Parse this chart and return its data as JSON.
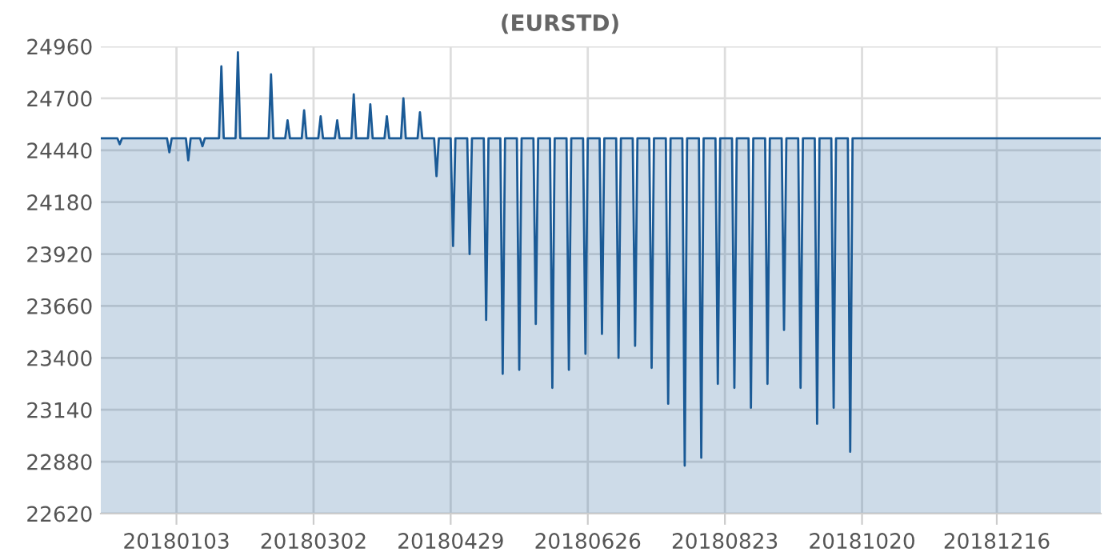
{
  "chart_data": {
    "type": "area",
    "title": "(EURSTD)",
    "x": [
      "2017-12-02",
      "2017-12-09",
      "2017-12-10",
      "2017-12-11",
      "2017-12-30",
      "2017-12-31",
      "2018-01-01",
      "2018-01-07",
      "2018-01-08",
      "2018-01-09",
      "2018-01-13",
      "2018-01-14",
      "2018-01-15",
      "2018-01-21",
      "2018-01-22",
      "2018-01-23",
      "2018-01-28",
      "2018-01-29",
      "2018-01-30",
      "2018-02-11",
      "2018-02-12",
      "2018-02-13",
      "2018-02-18",
      "2018-02-19",
      "2018-02-20",
      "2018-02-25",
      "2018-02-26",
      "2018-02-27",
      "2018-03-04",
      "2018-03-05",
      "2018-03-06",
      "2018-03-11",
      "2018-03-12",
      "2018-03-13",
      "2018-03-18",
      "2018-03-19",
      "2018-03-20",
      "2018-03-25",
      "2018-03-26",
      "2018-03-27",
      "2018-04-01",
      "2018-04-02",
      "2018-04-03",
      "2018-04-08",
      "2018-04-09",
      "2018-04-10",
      "2018-04-15",
      "2018-04-16",
      "2018-04-17",
      "2018-04-22",
      "2018-04-23",
      "2018-04-24",
      "2018-04-29",
      "2018-04-30",
      "2018-05-01",
      "2018-05-06",
      "2018-05-07",
      "2018-05-08",
      "2018-05-13",
      "2018-05-14",
      "2018-05-15",
      "2018-05-20",
      "2018-05-21",
      "2018-05-22",
      "2018-05-27",
      "2018-05-28",
      "2018-05-29",
      "2018-06-03",
      "2018-06-04",
      "2018-06-05",
      "2018-06-10",
      "2018-06-11",
      "2018-06-12",
      "2018-06-17",
      "2018-06-18",
      "2018-06-19",
      "2018-06-24",
      "2018-06-25",
      "2018-06-26",
      "2018-07-01",
      "2018-07-02",
      "2018-07-03",
      "2018-07-08",
      "2018-07-09",
      "2018-07-10",
      "2018-07-15",
      "2018-07-16",
      "2018-07-17",
      "2018-07-22",
      "2018-07-23",
      "2018-07-24",
      "2018-07-29",
      "2018-07-30",
      "2018-07-31",
      "2018-08-05",
      "2018-08-06",
      "2018-08-07",
      "2018-08-12",
      "2018-08-13",
      "2018-08-14",
      "2018-08-19",
      "2018-08-20",
      "2018-08-21",
      "2018-08-26",
      "2018-08-27",
      "2018-08-28",
      "2018-09-02",
      "2018-09-03",
      "2018-09-04",
      "2018-09-09",
      "2018-09-10",
      "2018-09-11",
      "2018-09-16",
      "2018-09-17",
      "2018-09-18",
      "2018-09-23",
      "2018-09-24",
      "2018-09-25",
      "2018-09-30",
      "2018-10-01",
      "2018-10-02",
      "2018-10-07",
      "2018-10-08",
      "2018-10-09",
      "2018-10-14",
      "2018-10-15",
      "2018-10-16",
      "2019-01-29"
    ],
    "series": [
      {
        "color": "#1a5a96",
        "values": [
          24500,
          24500,
          24470,
          24500,
          24500,
          24430,
          24500,
          24500,
          24390,
          24500,
          24500,
          24460,
          24500,
          24500,
          24860,
          24500,
          24500,
          24930,
          24500,
          24500,
          24820,
          24500,
          24500,
          24590,
          24500,
          24500,
          24640,
          24500,
          24500,
          24610,
          24500,
          24500,
          24590,
          24500,
          24500,
          24720,
          24500,
          24500,
          24670,
          24500,
          24500,
          24610,
          24500,
          24500,
          24700,
          24500,
          24500,
          24630,
          24500,
          24500,
          24310,
          24500,
          24500,
          23960,
          24500,
          24500,
          23920,
          24500,
          24500,
          23590,
          24500,
          24500,
          23320,
          24500,
          24500,
          23340,
          24500,
          24500,
          23570,
          24500,
          24500,
          23250,
          24500,
          24500,
          23340,
          24500,
          24500,
          23420,
          24500,
          24500,
          23520,
          24500,
          24500,
          23400,
          24500,
          24500,
          23460,
          24500,
          24500,
          23350,
          24500,
          24500,
          23170,
          24500,
          24500,
          22860,
          24500,
          24500,
          22900,
          24500,
          24500,
          23270,
          24500,
          24500,
          23250,
          24500,
          24500,
          23150,
          24500,
          24500,
          23270,
          24500,
          24500,
          23540,
          24500,
          24500,
          23250,
          24500,
          24500,
          23070,
          24500,
          24500,
          23150,
          24500,
          24500,
          22930,
          24500,
          24500
        ]
      }
    ],
    "xlim": [
      "2017-12-02",
      "2019-01-29"
    ],
    "xticks": [
      {
        "value": "2018-01-03",
        "label": "20180103"
      },
      {
        "value": "2018-03-02",
        "label": "20180302"
      },
      {
        "value": "2018-04-29",
        "label": "20180429"
      },
      {
        "value": "2018-06-26",
        "label": "20180626"
      },
      {
        "value": "2018-08-23",
        "label": "20180823"
      },
      {
        "value": "2018-10-20",
        "label": "20181020"
      },
      {
        "value": "2018-12-16",
        "label": "20181216"
      }
    ],
    "ylim": [
      22620,
      24960
    ],
    "yticks": [
      22620,
      22880,
      23140,
      23400,
      23660,
      23920,
      24180,
      24440,
      24700,
      24960
    ],
    "grid": true,
    "marker": "none",
    "line_style": "solid"
  }
}
